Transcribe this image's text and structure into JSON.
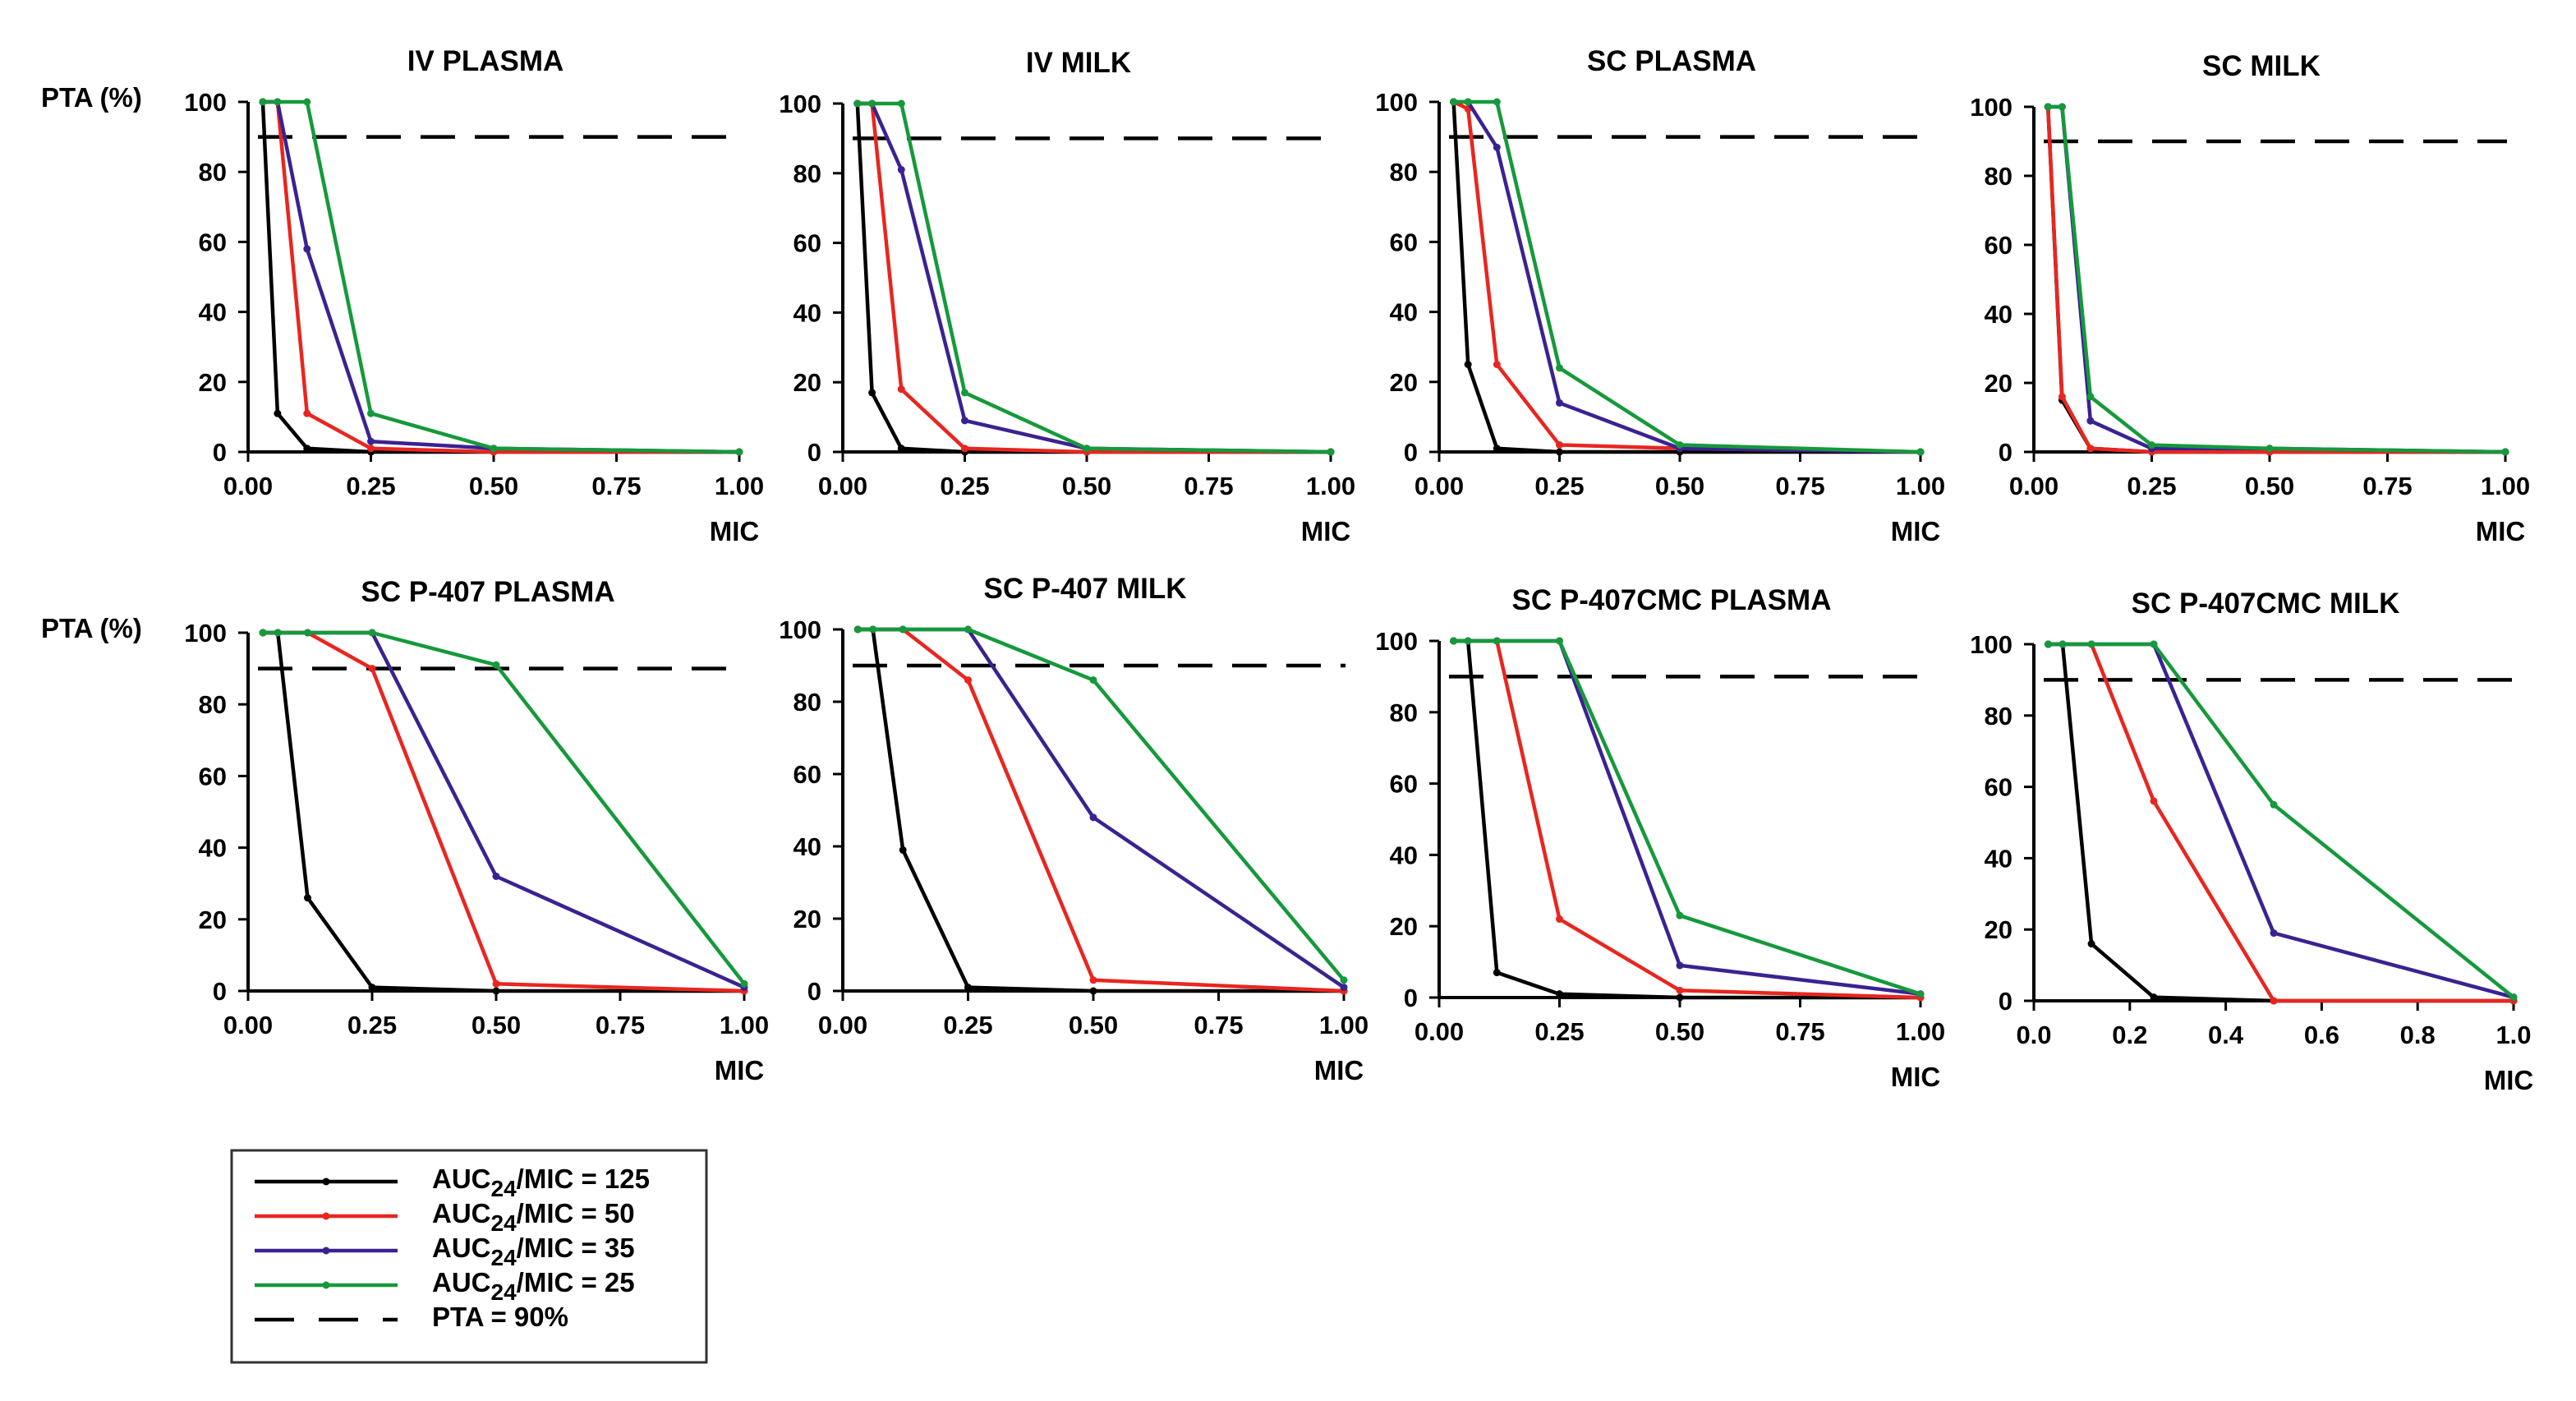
{
  "chart_data": [
    {
      "type": "line",
      "title": "IV PLASMA",
      "ylabel": "PTA (%)",
      "xlabel": "MIC",
      "xlim": [
        0,
        1
      ],
      "ylim": [
        0,
        100
      ],
      "xticks": [
        "0.00",
        "0.25",
        "0.50",
        "0.75",
        "1.00"
      ],
      "yticks": [
        "0",
        "20",
        "40",
        "60",
        "80",
        "100"
      ],
      "threshold": 90,
      "series": [
        {
          "name": "AUC24/MIC = 125",
          "x": [
            0.03,
            0.06,
            0.12,
            0.25,
            0.5,
            1.0
          ],
          "y": [
            100,
            11,
            1,
            0,
            0,
            0
          ]
        },
        {
          "name": "AUC24/MIC = 50",
          "x": [
            0.03,
            0.06,
            0.12,
            0.25,
            0.5,
            1.0
          ],
          "y": [
            100,
            100,
            11,
            1,
            0,
            0
          ]
        },
        {
          "name": "AUC24/MIC = 35",
          "x": [
            0.03,
            0.06,
            0.12,
            0.25,
            0.5,
            1.0
          ],
          "y": [
            100,
            100,
            58,
            3,
            1,
            0
          ]
        },
        {
          "name": "AUC24/MIC = 25",
          "x": [
            0.03,
            0.06,
            0.12,
            0.25,
            0.5,
            1.0
          ],
          "y": [
            100,
            100,
            100,
            11,
            1,
            0
          ]
        }
      ]
    },
    {
      "type": "line",
      "title": "IV MILK",
      "ylabel": "",
      "xlabel": "MIC",
      "xlim": [
        0,
        1
      ],
      "ylim": [
        0,
        100
      ],
      "xticks": [
        "0.00",
        "0.25",
        "0.50",
        "0.75",
        "1.00"
      ],
      "yticks": [
        "0",
        "20",
        "40",
        "60",
        "80",
        "100"
      ],
      "threshold": 90,
      "series": [
        {
          "name": "AUC24/MIC = 125",
          "x": [
            0.03,
            0.06,
            0.12,
            0.25,
            0.5,
            1.0
          ],
          "y": [
            100,
            17,
            1,
            0,
            0,
            0
          ]
        },
        {
          "name": "AUC24/MIC = 50",
          "x": [
            0.03,
            0.06,
            0.12,
            0.25,
            0.5,
            1.0
          ],
          "y": [
            100,
            100,
            18,
            1,
            0,
            0
          ]
        },
        {
          "name": "AUC24/MIC = 35",
          "x": [
            0.03,
            0.06,
            0.12,
            0.25,
            0.5,
            1.0
          ],
          "y": [
            100,
            100,
            81,
            9,
            1,
            0
          ]
        },
        {
          "name": "AUC24/MIC = 25",
          "x": [
            0.03,
            0.06,
            0.12,
            0.25,
            0.5,
            1.0
          ],
          "y": [
            100,
            100,
            100,
            17,
            1,
            0
          ]
        }
      ]
    },
    {
      "type": "line",
      "title": "SC PLASMA",
      "ylabel": "",
      "xlabel": "MIC",
      "xlim": [
        0,
        1
      ],
      "ylim": [
        0,
        100
      ],
      "xticks": [
        "0.00",
        "0.25",
        "0.50",
        "0.75",
        "1.00"
      ],
      "yticks": [
        "0",
        "20",
        "40",
        "60",
        "80",
        "100"
      ],
      "threshold": 90,
      "series": [
        {
          "name": "AUC24/MIC = 125",
          "x": [
            0.03,
            0.06,
            0.12,
            0.25,
            0.5,
            1.0
          ],
          "y": [
            100,
            25,
            1,
            0,
            0,
            0
          ]
        },
        {
          "name": "AUC24/MIC = 50",
          "x": [
            0.03,
            0.06,
            0.12,
            0.25,
            0.5,
            1.0
          ],
          "y": [
            100,
            98,
            25,
            2,
            1,
            0
          ]
        },
        {
          "name": "AUC24/MIC = 35",
          "x": [
            0.03,
            0.06,
            0.12,
            0.25,
            0.5,
            1.0
          ],
          "y": [
            100,
            100,
            87,
            14,
            1,
            0
          ]
        },
        {
          "name": "AUC24/MIC = 25",
          "x": [
            0.03,
            0.06,
            0.12,
            0.25,
            0.5,
            1.0
          ],
          "y": [
            100,
            100,
            100,
            24,
            2,
            0
          ]
        }
      ]
    },
    {
      "type": "line",
      "title": "SC  MILK",
      "ylabel": "",
      "xlabel": "MIC",
      "xlim": [
        0,
        1
      ],
      "ylim": [
        0,
        100
      ],
      "xticks": [
        "0.00",
        "0.25",
        "0.50",
        "0.75",
        "1.00"
      ],
      "yticks": [
        "0",
        "20",
        "40",
        "60",
        "80",
        "100"
      ],
      "threshold": 90,
      "series": [
        {
          "name": "AUC24/MIC = 125",
          "x": [
            0.03,
            0.06,
            0.12,
            0.25,
            0.5,
            1.0
          ],
          "y": [
            100,
            15,
            1,
            0,
            0,
            0
          ]
        },
        {
          "name": "AUC24/MIC = 50",
          "x": [
            0.03,
            0.06,
            0.12,
            0.25,
            0.5,
            1.0
          ],
          "y": [
            100,
            16,
            1,
            0,
            0,
            0
          ]
        },
        {
          "name": "AUC24/MIC = 35",
          "x": [
            0.03,
            0.06,
            0.12,
            0.25,
            0.5,
            1.0
          ],
          "y": [
            100,
            100,
            9,
            1,
            1,
            0
          ]
        },
        {
          "name": "AUC24/MIC = 25",
          "x": [
            0.03,
            0.06,
            0.12,
            0.25,
            0.5,
            1.0
          ],
          "y": [
            100,
            100,
            16,
            2,
            1,
            0
          ]
        }
      ]
    },
    {
      "type": "line",
      "title": "SC P-407 PLASMA",
      "ylabel": "PTA (%)",
      "xlabel": "MIC",
      "xlim": [
        0,
        1
      ],
      "ylim": [
        0,
        100
      ],
      "xticks": [
        "0.00",
        "0.25",
        "0.50",
        "0.75",
        "1.00"
      ],
      "yticks": [
        "0",
        "20",
        "40",
        "60",
        "80",
        "100"
      ],
      "threshold": 90,
      "series": [
        {
          "name": "AUC24/MIC = 125",
          "x": [
            0.03,
            0.06,
            0.12,
            0.25,
            0.5,
            1.0
          ],
          "y": [
            100,
            100,
            26,
            1,
            0,
            0
          ]
        },
        {
          "name": "AUC24/MIC = 50",
          "x": [
            0.03,
            0.06,
            0.12,
            0.25,
            0.5,
            1.0
          ],
          "y": [
            100,
            100,
            100,
            90,
            2,
            0
          ]
        },
        {
          "name": "AUC24/MIC = 35",
          "x": [
            0.03,
            0.06,
            0.12,
            0.25,
            0.5,
            1.0
          ],
          "y": [
            100,
            100,
            100,
            100,
            32,
            1
          ]
        },
        {
          "name": "AUC24/MIC = 25",
          "x": [
            0.03,
            0.06,
            0.12,
            0.25,
            0.5,
            1.0
          ],
          "y": [
            100,
            100,
            100,
            100,
            91,
            2
          ]
        }
      ]
    },
    {
      "type": "line",
      "title": "SC P-407 MILK",
      "ylabel": "",
      "xlabel": "MIC",
      "xlim": [
        0,
        1
      ],
      "ylim": [
        0,
        100
      ],
      "xticks": [
        "0.00",
        "0.25",
        "0.50",
        "0.75",
        "1.00"
      ],
      "yticks": [
        "0",
        "20",
        "40",
        "60",
        "80",
        "100"
      ],
      "threshold": 90,
      "series": [
        {
          "name": "AUC24/MIC = 125",
          "x": [
            0.03,
            0.06,
            0.12,
            0.25,
            0.5,
            1.0
          ],
          "y": [
            100,
            100,
            39,
            1,
            0,
            0
          ]
        },
        {
          "name": "AUC24/MIC = 50",
          "x": [
            0.03,
            0.06,
            0.12,
            0.25,
            0.5,
            1.0
          ],
          "y": [
            100,
            100,
            100,
            86,
            3,
            0
          ]
        },
        {
          "name": "AUC24/MIC = 35",
          "x": [
            0.03,
            0.06,
            0.12,
            0.25,
            0.5,
            1.0
          ],
          "y": [
            100,
            100,
            100,
            100,
            48,
            1
          ]
        },
        {
          "name": "AUC24/MIC = 25",
          "x": [
            0.03,
            0.06,
            0.12,
            0.25,
            0.5,
            1.0
          ],
          "y": [
            100,
            100,
            100,
            100,
            86,
            3
          ]
        }
      ]
    },
    {
      "type": "line",
      "title": "SC P-407CMC PLASMA",
      "ylabel": "",
      "xlabel": "MIC",
      "xlim": [
        0,
        1
      ],
      "ylim": [
        0,
        100
      ],
      "xticks": [
        "0.00",
        "0.25",
        "0.50",
        "0.75",
        "1.00"
      ],
      "yticks": [
        "0",
        "20",
        "40",
        "60",
        "80",
        "100"
      ],
      "threshold": 90,
      "series": [
        {
          "name": "AUC24/MIC = 125",
          "x": [
            0.03,
            0.06,
            0.12,
            0.25,
            0.5,
            1.0
          ],
          "y": [
            100,
            100,
            7,
            1,
            0,
            0
          ]
        },
        {
          "name": "AUC24/MIC = 50",
          "x": [
            0.03,
            0.06,
            0.12,
            0.25,
            0.5,
            1.0
          ],
          "y": [
            100,
            100,
            100,
            22,
            2,
            0
          ]
        },
        {
          "name": "AUC24/MIC = 35",
          "x": [
            0.03,
            0.06,
            0.12,
            0.25,
            0.5,
            1.0
          ],
          "y": [
            100,
            100,
            100,
            100,
            9,
            1
          ]
        },
        {
          "name": "AUC24/MIC = 25",
          "x": [
            0.03,
            0.06,
            0.12,
            0.25,
            0.5,
            1.0
          ],
          "y": [
            100,
            100,
            100,
            100,
            23,
            1
          ]
        }
      ]
    },
    {
      "type": "line",
      "title": "SC P-407CMC MILK",
      "ylabel": "",
      "xlabel": "MIC",
      "xlim": [
        0,
        1
      ],
      "ylim": [
        0,
        100
      ],
      "xticks": [
        "0.0",
        "0.2",
        "0.4",
        "0.6",
        "0.8",
        "1.0"
      ],
      "yticks": [
        "0",
        "20",
        "40",
        "60",
        "80",
        "100"
      ],
      "threshold": 90,
      "series": [
        {
          "name": "AUC24/MIC = 125",
          "x": [
            0.03,
            0.06,
            0.12,
            0.25,
            0.5,
            1.0
          ],
          "y": [
            100,
            100,
            16,
            1,
            0,
            0
          ]
        },
        {
          "name": "AUC24/MIC = 50",
          "x": [
            0.03,
            0.06,
            0.12,
            0.25,
            0.5,
            1.0
          ],
          "y": [
            100,
            100,
            100,
            56,
            0,
            0
          ]
        },
        {
          "name": "AUC24/MIC = 35",
          "x": [
            0.03,
            0.06,
            0.12,
            0.25,
            0.5,
            1.0
          ],
          "y": [
            100,
            100,
            100,
            100,
            19,
            1
          ]
        },
        {
          "name": "AUC24/MIC = 25",
          "x": [
            0.03,
            0.06,
            0.12,
            0.25,
            0.5,
            1.0
          ],
          "y": [
            100,
            100,
            100,
            100,
            55,
            1
          ]
        }
      ]
    }
  ],
  "legend": {
    "entries": [
      {
        "prefix": "AUC",
        "sub": "24",
        "suffix": "/MIC = 125",
        "color": "#000000",
        "dashed": false
      },
      {
        "prefix": "AUC",
        "sub": "24",
        "suffix": "/MIC = 50",
        "color": "#e8261f",
        "dashed": false
      },
      {
        "prefix": "AUC",
        "sub": "24",
        "suffix": "/MIC = 35",
        "color": "#3b2291",
        "dashed": false
      },
      {
        "prefix": "AUC",
        "sub": "24",
        "suffix": "/MIC = 25",
        "color": "#16993b",
        "dashed": false
      },
      {
        "prefix": "PTA = 90%",
        "sub": "",
        "suffix": "",
        "color": "#000000",
        "dashed": true
      }
    ]
  },
  "colors": {
    "series": [
      "#000000",
      "#e8261f",
      "#3b2291",
      "#16993b"
    ],
    "threshold": "#000000"
  }
}
